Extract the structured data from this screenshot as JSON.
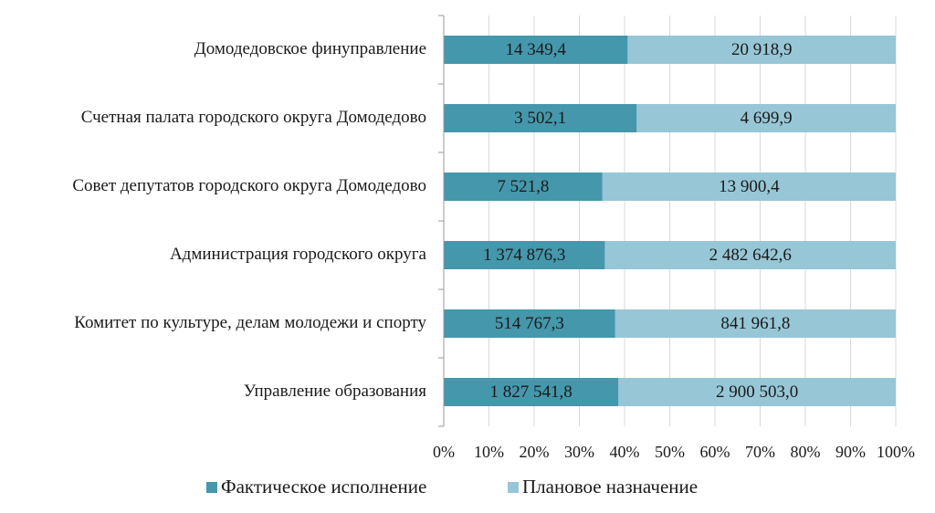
{
  "chart_data": {
    "type": "bar",
    "orientation": "horizontal",
    "stacking": "percent",
    "categories": [
      "Домодедовское финуправление",
      "Счетная палата городского округа Домодедово",
      "Совет депутатов городского округа Домодедово",
      "Администрация городского округа",
      "Комитет по культуре, делам молодежи и спорту",
      "Управление образования"
    ],
    "series": [
      {
        "name": "Фактическое исполнение",
        "color": "#4597ab",
        "values": [
          14349.4,
          3502.1,
          7521.8,
          1374876.3,
          514767.3,
          1827541.8
        ],
        "value_labels": [
          "14 349,4",
          "3 502,1",
          "7 521,8",
          "1 374 876,3",
          "514 767,3",
          "1 827 541,8"
        ]
      },
      {
        "name": "Плановое назначение",
        "color": "#97c6d6",
        "values": [
          20918.9,
          4699.9,
          13900.4,
          2482642.6,
          841961.8,
          2900503.0
        ],
        "value_labels": [
          "20 918,9",
          "4 699,9",
          "13 900,4",
          "2 482 642,6",
          "841 961,8",
          "2 900 503,0"
        ]
      }
    ],
    "x_ticks": [
      "0%",
      "10%",
      "20%",
      "30%",
      "40%",
      "50%",
      "60%",
      "70%",
      "80%",
      "90%",
      "100%"
    ],
    "xlim": [
      0,
      100
    ],
    "grid": true,
    "legend_position": "bottom"
  }
}
